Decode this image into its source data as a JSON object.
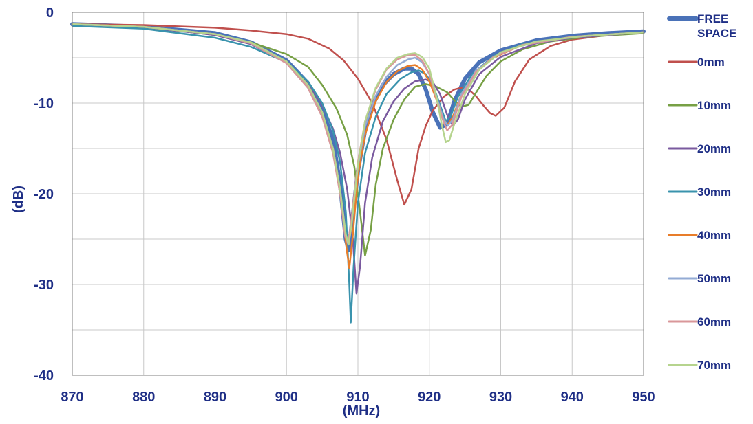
{
  "chart_data": {
    "type": "line",
    "title": "",
    "xlabel": "(MHz)",
    "ylabel": "(dB)",
    "xlim": [
      870,
      950
    ],
    "ylim": [
      -40,
      0
    ],
    "xticks": [
      870,
      880,
      890,
      900,
      910,
      920,
      930,
      940,
      950
    ],
    "yticks": [
      0,
      -10,
      -20,
      -30,
      -40
    ],
    "grid": true,
    "legend_position": "right",
    "colors": {
      "axis_text": "#1f2f86",
      "ylabel": "#4f6fa8",
      "grid": "#c8c8c8",
      "axes": "#7f7f7f"
    },
    "series": [
      {
        "name": "FREE SPACE",
        "legend_lines": [
          "FREE",
          "SPACE"
        ],
        "color": "#4a72b8",
        "width": 6,
        "points": [
          [
            870,
            -1.3
          ],
          [
            880,
            -1.6
          ],
          [
            890,
            -2.3
          ],
          [
            895,
            -3.3
          ],
          [
            900,
            -5.3
          ],
          [
            903,
            -7.8
          ],
          [
            905,
            -10.8
          ],
          [
            906.5,
            -14
          ],
          [
            907.5,
            -19
          ],
          [
            908.3,
            -25
          ],
          [
            908.7,
            -26.2
          ],
          [
            909.2,
            -23
          ],
          [
            910,
            -17.5
          ],
          [
            911,
            -13
          ],
          [
            912,
            -10.3
          ],
          [
            913.5,
            -8
          ],
          [
            915,
            -6.8
          ],
          [
            916.5,
            -6.2
          ],
          [
            917.5,
            -6.2
          ],
          [
            918.5,
            -6.8
          ],
          [
            919.5,
            -8.5
          ],
          [
            920.5,
            -11
          ],
          [
            921.5,
            -12.7
          ],
          [
            922.5,
            -12.3
          ],
          [
            923.5,
            -9.8
          ],
          [
            925,
            -7.3
          ],
          [
            927,
            -5.5
          ],
          [
            930,
            -4.2
          ],
          [
            935,
            -3.1
          ],
          [
            940,
            -2.6
          ],
          [
            945,
            -2.3
          ],
          [
            950,
            -2.1
          ]
        ]
      },
      {
        "name": "0mm",
        "legend_lines": [
          "0mm"
        ],
        "color": "#c0504d",
        "width": 2.5,
        "points": [
          [
            870,
            -1.3
          ],
          [
            880,
            -1.4
          ],
          [
            890,
            -1.7
          ],
          [
            895,
            -2
          ],
          [
            900,
            -2.4
          ],
          [
            903,
            -2.9
          ],
          [
            906,
            -4
          ],
          [
            908,
            -5.3
          ],
          [
            910,
            -7.3
          ],
          [
            912,
            -10
          ],
          [
            914,
            -14
          ],
          [
            915.5,
            -18.5
          ],
          [
            916.5,
            -21.2
          ],
          [
            917.5,
            -19.5
          ],
          [
            918.5,
            -15
          ],
          [
            919.5,
            -12.5
          ],
          [
            920.5,
            -10.8
          ],
          [
            922,
            -9.3
          ],
          [
            923.5,
            -8.5
          ],
          [
            924.5,
            -8.3
          ],
          [
            925.5,
            -8.5
          ],
          [
            926.5,
            -9.2
          ],
          [
            927.5,
            -10.2
          ],
          [
            928.5,
            -11.1
          ],
          [
            929.3,
            -11.4
          ],
          [
            930.5,
            -10.5
          ],
          [
            932,
            -7.6
          ],
          [
            934,
            -5.2
          ],
          [
            937,
            -3.7
          ],
          [
            940,
            -3
          ],
          [
            945,
            -2.5
          ],
          [
            950,
            -2.2
          ]
        ]
      },
      {
        "name": "10mm",
        "legend_lines": [
          "10mm"
        ],
        "color": "#77a045",
        "width": 2.5,
        "points": [
          [
            870,
            -1.3
          ],
          [
            880,
            -1.6
          ],
          [
            890,
            -2.5
          ],
          [
            895,
            -3.3
          ],
          [
            900,
            -4.6
          ],
          [
            903,
            -6
          ],
          [
            905,
            -8
          ],
          [
            907,
            -10.6
          ],
          [
            908.5,
            -13.5
          ],
          [
            909.5,
            -17
          ],
          [
            910.3,
            -22
          ],
          [
            911,
            -26.8
          ],
          [
            911.8,
            -24
          ],
          [
            912.5,
            -19
          ],
          [
            913.5,
            -15
          ],
          [
            915,
            -11.8
          ],
          [
            916.5,
            -9.6
          ],
          [
            918,
            -8.2
          ],
          [
            919.5,
            -7.9
          ],
          [
            921,
            -8.2
          ],
          [
            922.5,
            -8.8
          ],
          [
            923.5,
            -9.7
          ],
          [
            924.5,
            -10.4
          ],
          [
            925.5,
            -10.2
          ],
          [
            926.5,
            -8.9
          ],
          [
            928,
            -7
          ],
          [
            930,
            -5.4
          ],
          [
            933,
            -4.1
          ],
          [
            937,
            -3.2
          ],
          [
            942,
            -2.7
          ],
          [
            950,
            -2.3
          ]
        ]
      },
      {
        "name": "20mm",
        "legend_lines": [
          "20mm"
        ],
        "color": "#7a5a9f",
        "width": 2.5,
        "points": [
          [
            870,
            -1.3
          ],
          [
            880,
            -1.6
          ],
          [
            890,
            -2.5
          ],
          [
            895,
            -3.5
          ],
          [
            900,
            -5.5
          ],
          [
            903,
            -7.8
          ],
          [
            905,
            -10.2
          ],
          [
            906.5,
            -12.8
          ],
          [
            907.5,
            -15.5
          ],
          [
            908.5,
            -19.5
          ],
          [
            909.3,
            -25
          ],
          [
            909.8,
            -31
          ],
          [
            910.3,
            -28
          ],
          [
            911,
            -21
          ],
          [
            912,
            -16
          ],
          [
            913.5,
            -12
          ],
          [
            915,
            -9.8
          ],
          [
            916.5,
            -8.4
          ],
          [
            918,
            -7.6
          ],
          [
            919.5,
            -7.4
          ],
          [
            920.5,
            -7.7
          ],
          [
            921.5,
            -9
          ],
          [
            922.5,
            -11.3
          ],
          [
            923.3,
            -12.5
          ],
          [
            924,
            -11.8
          ],
          [
            925,
            -9.6
          ],
          [
            927,
            -6.8
          ],
          [
            930,
            -4.9
          ],
          [
            935,
            -3.4
          ],
          [
            940,
            -2.8
          ],
          [
            950,
            -2.2
          ]
        ]
      },
      {
        "name": "30mm",
        "legend_lines": [
          "30mm"
        ],
        "color": "#3a93ad",
        "width": 2.5,
        "points": [
          [
            870,
            -1.5
          ],
          [
            880,
            -1.8
          ],
          [
            890,
            -2.8
          ],
          [
            895,
            -3.8
          ],
          [
            900,
            -5.5
          ],
          [
            903,
            -7.6
          ],
          [
            905,
            -10
          ],
          [
            906.5,
            -13
          ],
          [
            907.5,
            -16.5
          ],
          [
            908.3,
            -22
          ],
          [
            908.8,
            -30
          ],
          [
            909,
            -34.2
          ],
          [
            909.4,
            -28
          ],
          [
            910,
            -21
          ],
          [
            911,
            -15.5
          ],
          [
            912.5,
            -11.5
          ],
          [
            914,
            -9
          ],
          [
            916,
            -7.3
          ],
          [
            917.5,
            -6.6
          ],
          [
            918.5,
            -6.4
          ],
          [
            919.5,
            -6.8
          ],
          [
            920.5,
            -8
          ],
          [
            921.5,
            -10.2
          ],
          [
            922.3,
            -12
          ],
          [
            923,
            -11.4
          ],
          [
            924,
            -9.3
          ],
          [
            926,
            -6.8
          ],
          [
            929,
            -4.8
          ],
          [
            933,
            -3.5
          ],
          [
            940,
            -2.7
          ],
          [
            950,
            -2.2
          ]
        ]
      },
      {
        "name": "40mm",
        "legend_lines": [
          "40mm"
        ],
        "color": "#e87d2a",
        "width": 2.5,
        "points": [
          [
            870,
            -1.3
          ],
          [
            880,
            -1.6
          ],
          [
            890,
            -2.4
          ],
          [
            895,
            -3.4
          ],
          [
            900,
            -5.6
          ],
          [
            903,
            -8.3
          ],
          [
            905,
            -11.5
          ],
          [
            906.5,
            -15
          ],
          [
            907.5,
            -19.5
          ],
          [
            908.4,
            -26
          ],
          [
            908.8,
            -28.2
          ],
          [
            909.3,
            -24.5
          ],
          [
            910,
            -18
          ],
          [
            911,
            -13.5
          ],
          [
            912.5,
            -9.8
          ],
          [
            914,
            -7.7
          ],
          [
            915.5,
            -6.5
          ],
          [
            917,
            -5.9
          ],
          [
            918,
            -5.8
          ],
          [
            919,
            -6.3
          ],
          [
            920,
            -7.6
          ],
          [
            921,
            -9.6
          ],
          [
            922,
            -11.8
          ],
          [
            922.6,
            -12.4
          ],
          [
            923.3,
            -11.5
          ],
          [
            924.5,
            -9
          ],
          [
            926.5,
            -6.6
          ],
          [
            929,
            -5
          ],
          [
            933,
            -3.6
          ],
          [
            940,
            -2.7
          ],
          [
            950,
            -2.2
          ]
        ]
      },
      {
        "name": "50mm",
        "legend_lines": [
          "50mm"
        ],
        "color": "#93abd4",
        "width": 2.5,
        "points": [
          [
            870,
            -1.3
          ],
          [
            880,
            -1.6
          ],
          [
            890,
            -2.4
          ],
          [
            895,
            -3.4
          ],
          [
            900,
            -5.6
          ],
          [
            903,
            -8.3
          ],
          [
            905,
            -11.5
          ],
          [
            906.5,
            -15
          ],
          [
            907.5,
            -19.5
          ],
          [
            908.2,
            -24.5
          ],
          [
            908.6,
            -25.5
          ],
          [
            909,
            -23.5
          ],
          [
            910,
            -17
          ],
          [
            911,
            -12.6
          ],
          [
            912.5,
            -9.2
          ],
          [
            914,
            -7.1
          ],
          [
            915.5,
            -5.8
          ],
          [
            917,
            -5.2
          ],
          [
            918,
            -5
          ],
          [
            919,
            -5.5
          ],
          [
            920,
            -6.8
          ],
          [
            921,
            -9.3
          ],
          [
            922,
            -11.8
          ],
          [
            922.6,
            -12.5
          ],
          [
            923.3,
            -11.8
          ],
          [
            924.5,
            -9
          ],
          [
            926.5,
            -6.5
          ],
          [
            929,
            -4.9
          ],
          [
            933,
            -3.6
          ],
          [
            940,
            -2.7
          ],
          [
            950,
            -2.2
          ]
        ]
      },
      {
        "name": "60mm",
        "legend_lines": [
          "60mm"
        ],
        "color": "#d9979a",
        "width": 2.5,
        "points": [
          [
            870,
            -1.3
          ],
          [
            880,
            -1.6
          ],
          [
            890,
            -2.4
          ],
          [
            895,
            -3.4
          ],
          [
            900,
            -5.6
          ],
          [
            903,
            -8.3
          ],
          [
            905,
            -11.5
          ],
          [
            906.5,
            -15.5
          ],
          [
            907.5,
            -20
          ],
          [
            908.2,
            -24.7
          ],
          [
            908.6,
            -25.4
          ],
          [
            909,
            -23.5
          ],
          [
            910,
            -16.5
          ],
          [
            911,
            -12
          ],
          [
            912.5,
            -8.5
          ],
          [
            914,
            -6.3
          ],
          [
            915.5,
            -5.2
          ],
          [
            917,
            -4.7
          ],
          [
            918,
            -4.7
          ],
          [
            919,
            -5.3
          ],
          [
            920,
            -6.8
          ],
          [
            921,
            -9.5
          ],
          [
            922,
            -12.1
          ],
          [
            922.5,
            -13
          ],
          [
            923.2,
            -12.4
          ],
          [
            924.5,
            -9.3
          ],
          [
            926.5,
            -6.6
          ],
          [
            929,
            -4.9
          ],
          [
            933,
            -3.6
          ],
          [
            940,
            -2.7
          ],
          [
            950,
            -2.2
          ]
        ]
      },
      {
        "name": "70mm",
        "legend_lines": [
          "70mm"
        ],
        "color": "#b6d48e",
        "width": 2.5,
        "points": [
          [
            870,
            -1.3
          ],
          [
            880,
            -1.6
          ],
          [
            890,
            -2.4
          ],
          [
            895,
            -3.3
          ],
          [
            900,
            -5.4
          ],
          [
            903,
            -8
          ],
          [
            905,
            -11
          ],
          [
            906.5,
            -15
          ],
          [
            907.5,
            -19.5
          ],
          [
            908.3,
            -24.5
          ],
          [
            908.7,
            -25.6
          ],
          [
            909.1,
            -23.5
          ],
          [
            910,
            -16.8
          ],
          [
            911,
            -12
          ],
          [
            912.5,
            -8.3
          ],
          [
            914,
            -6.2
          ],
          [
            915.5,
            -5
          ],
          [
            917,
            -4.6
          ],
          [
            918,
            -4.5
          ],
          [
            919,
            -4.9
          ],
          [
            920,
            -6.2
          ],
          [
            921,
            -9.3
          ],
          [
            921.8,
            -12.6
          ],
          [
            922.3,
            -14.3
          ],
          [
            922.8,
            -14.1
          ],
          [
            923.5,
            -12.3
          ],
          [
            925,
            -9
          ],
          [
            927,
            -6.3
          ],
          [
            930,
            -4.4
          ],
          [
            935,
            -3.2
          ],
          [
            942,
            -2.6
          ],
          [
            950,
            -2.2
          ]
        ]
      }
    ]
  }
}
